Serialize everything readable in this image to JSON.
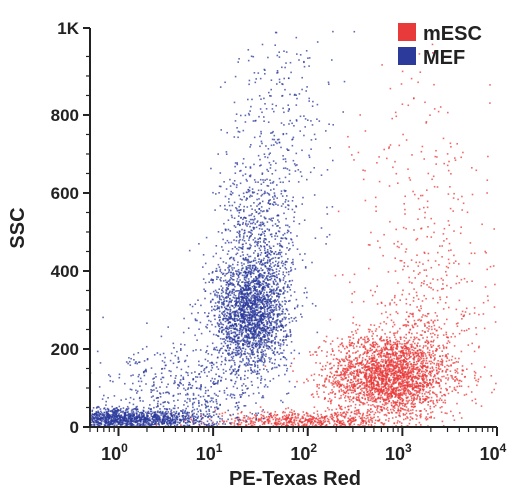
{
  "chart_data": {
    "type": "scatter",
    "title": "",
    "xlabel": "PE-Texas Red",
    "ylabel": "SSC",
    "x_scale": "log",
    "xlim": [
      0.5,
      10000
    ],
    "ylim": [
      0,
      1023
    ],
    "x_ticks": [
      {
        "value": 1,
        "base": "10",
        "exp": "0"
      },
      {
        "value": 10,
        "base": "10",
        "exp": "1"
      },
      {
        "value": 100,
        "base": "10",
        "exp": "2"
      },
      {
        "value": 1000,
        "base": "10",
        "exp": "3"
      },
      {
        "value": 10000,
        "base": "10",
        "exp": "4"
      }
    ],
    "y_ticks": [
      {
        "value": 0,
        "label": "0"
      },
      {
        "value": 200,
        "label": "200"
      },
      {
        "value": 400,
        "label": "400"
      },
      {
        "value": 600,
        "label": "600"
      },
      {
        "value": 800,
        "label": "800"
      },
      {
        "value": 1023,
        "label": "1K"
      }
    ],
    "legend_position": "top-right",
    "grid": false,
    "series": [
      {
        "name": "mESC",
        "color": "#e83a3a",
        "clusters": [
          {
            "x_center": 700,
            "y_center": 130,
            "x_spread_decades": 0.32,
            "y_spread": 55,
            "points": 2400
          },
          {
            "x_center": 1600,
            "y_center": 180,
            "x_spread_decades": 0.35,
            "y_spread": 120,
            "points": 500
          },
          {
            "x_center": 80,
            "y_center": 15,
            "x_spread_decades": 0.45,
            "y_spread": 12,
            "points": 600
          },
          {
            "x_center": 2000,
            "y_center": 500,
            "x_spread_decades": 0.4,
            "y_spread": 220,
            "points": 280
          }
        ]
      },
      {
        "name": "MEF",
        "color": "#2b3a9b",
        "clusters": [
          {
            "x_center": 25,
            "y_center": 290,
            "x_spread_decades": 0.2,
            "y_spread": 75,
            "points": 2200
          },
          {
            "x_center": 32,
            "y_center": 500,
            "x_spread_decades": 0.22,
            "y_spread": 90,
            "points": 600
          },
          {
            "x_center": 50,
            "y_center": 780,
            "x_spread_decades": 0.28,
            "y_spread": 120,
            "points": 260
          },
          {
            "x_center": 1.2,
            "y_center": 20,
            "x_spread_decades": 0.45,
            "y_spread": 14,
            "points": 1500
          },
          {
            "x_center": 5,
            "y_center": 90,
            "x_spread_decades": 0.4,
            "y_spread": 60,
            "points": 500
          }
        ]
      }
    ]
  },
  "legend": {
    "items": [
      {
        "label": "mESC",
        "color": "#e83a3a"
      },
      {
        "label": "MEF",
        "color": "#2b3a9b"
      }
    ]
  }
}
